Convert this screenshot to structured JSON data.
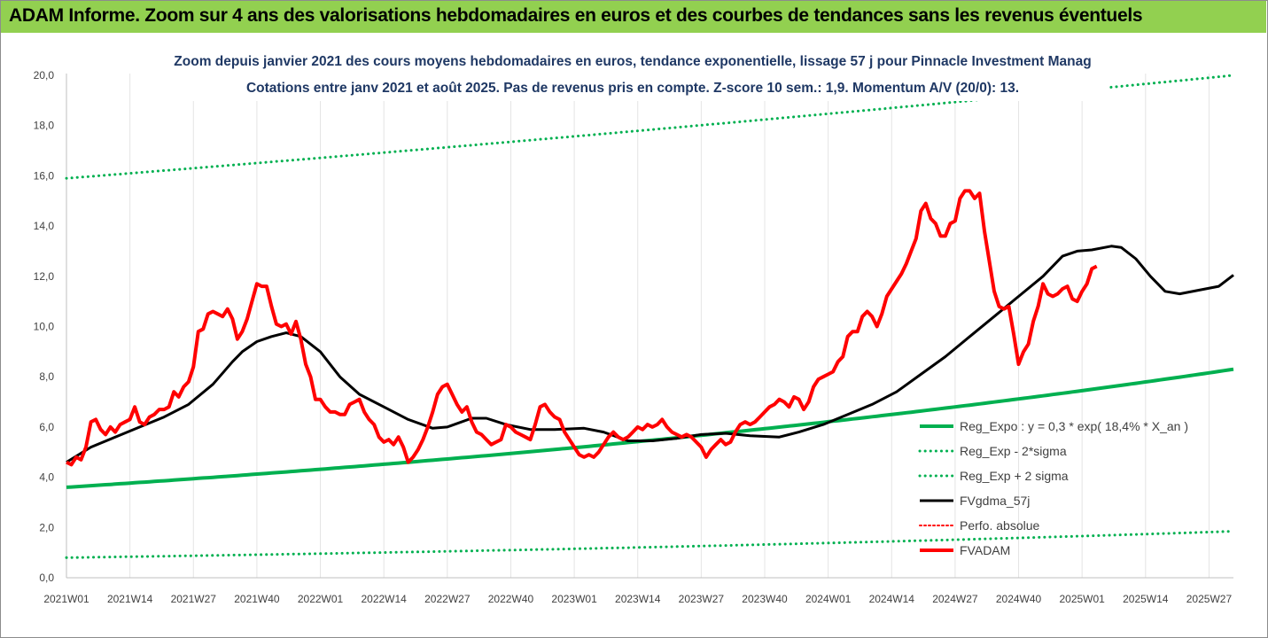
{
  "banner": {
    "title": "ADAM Informe. Zoom sur 4 ans des valorisations hebdomadaires en euros et des courbes de tendances sans les revenus éventuels"
  },
  "colors": {
    "banner_bg": "#92d050",
    "trend": "#00b050",
    "band": "#00b050",
    "smooth": "#000000",
    "price": "#ff0000",
    "perf": "#ff0000",
    "subtitle": "#1f3864"
  },
  "chart_data": {
    "type": "line",
    "title_lines": [
      "Zoom depuis janvier 2021 des cours moyens hebdomadaires en euros, tendance exponentielle, lissage 57 j pour Pinnacle Investment Manag",
      "Cotations entre janv 2021 et août 2025.  Pas de revenus pris en compte. Z-score 10 sem.: 1,9. Momentum A/V (20/0): 13."
    ],
    "y_ticks": [
      "0,0",
      "2,0",
      "4,0",
      "6,0",
      "8,0",
      "10,0",
      "12,0",
      "14,0",
      "16,0",
      "18,0",
      "20,0"
    ],
    "ylim": [
      0,
      20
    ],
    "x_tick_labels": [
      "2021W01",
      "2021W14",
      "2021W27",
      "2021W40",
      "2022W01",
      "2022W14",
      "2022W27",
      "2022W40",
      "2023W01",
      "2023W14",
      "2023W27",
      "2023W40",
      "2024W01",
      "2024W14",
      "2024W27",
      "2024W40",
      "2025W01",
      "2025W14",
      "2025W27"
    ],
    "x_tick_index": [
      0,
      13,
      26,
      39,
      52,
      65,
      78,
      91,
      104,
      117,
      130,
      143,
      156,
      169,
      182,
      195,
      208,
      221,
      234
    ],
    "week_count": 240,
    "grid": "vertical",
    "legend_position": "right",
    "legend": [
      {
        "key": "trend",
        "label": "Reg_Expo : y = 0,3 * exp( 18,4% *  X_an )"
      },
      {
        "key": "lower",
        "label": "Reg_Exp - 2*sigma"
      },
      {
        "key": "upper",
        "label": "Reg_Exp + 2 sigma"
      },
      {
        "key": "smooth",
        "label": "FVgdma_57j"
      },
      {
        "key": "perf",
        "label": "Perfo. absolue"
      },
      {
        "key": "price",
        "label": "FVADAM"
      }
    ],
    "series": [
      {
        "key": "trend",
        "name": "Reg_Expo : y = 0,3 * exp( 18,4% *  X_an )",
        "start": 3.6,
        "end": 8.3
      },
      {
        "key": "lower",
        "name": "Reg_Exp - 2*sigma",
        "start": 0.8,
        "end": 1.85
      },
      {
        "key": "upper",
        "name": "Reg_Exp + 2 sigma",
        "start": 15.9,
        "end": 20.0
      },
      {
        "key": "smooth",
        "name": "FVgdma_57j",
        "points": [
          [
            0,
            4.6
          ],
          [
            5,
            5.2
          ],
          [
            10,
            5.6
          ],
          [
            15,
            6.0
          ],
          [
            20,
            6.4
          ],
          [
            25,
            6.9
          ],
          [
            30,
            7.7
          ],
          [
            34,
            8.6
          ],
          [
            36,
            9.0
          ],
          [
            39,
            9.4
          ],
          [
            42,
            9.6
          ],
          [
            45,
            9.75
          ],
          [
            48,
            9.6
          ],
          [
            52,
            9.0
          ],
          [
            56,
            8.0
          ],
          [
            60,
            7.3
          ],
          [
            65,
            6.8
          ],
          [
            70,
            6.3
          ],
          [
            75,
            5.95
          ],
          [
            78,
            6.0
          ],
          [
            83,
            6.35
          ],
          [
            86,
            6.35
          ],
          [
            90,
            6.1
          ],
          [
            95,
            5.9
          ],
          [
            100,
            5.9
          ],
          [
            106,
            5.95
          ],
          [
            110,
            5.8
          ],
          [
            115,
            5.45
          ],
          [
            120,
            5.45
          ],
          [
            125,
            5.55
          ],
          [
            130,
            5.7
          ],
          [
            135,
            5.75
          ],
          [
            140,
            5.65
          ],
          [
            146,
            5.6
          ],
          [
            150,
            5.8
          ],
          [
            155,
            6.1
          ],
          [
            160,
            6.5
          ],
          [
            165,
            6.9
          ],
          [
            170,
            7.4
          ],
          [
            175,
            8.1
          ],
          [
            180,
            8.8
          ],
          [
            185,
            9.6
          ],
          [
            190,
            10.4
          ],
          [
            195,
            11.2
          ],
          [
            200,
            12.0
          ],
          [
            204,
            12.8
          ],
          [
            207,
            13.0
          ],
          [
            210,
            13.05
          ],
          [
            214,
            13.2
          ],
          [
            216,
            13.15
          ],
          [
            219,
            12.7
          ],
          [
            222,
            12.0
          ],
          [
            225,
            11.4
          ],
          [
            228,
            11.3
          ],
          [
            232,
            11.45
          ],
          [
            236,
            11.6
          ],
          [
            239,
            12.05
          ]
        ]
      },
      {
        "key": "price",
        "name": "FVADAM",
        "points": [
          [
            0,
            4.6
          ],
          [
            1,
            4.5
          ],
          [
            2,
            4.8
          ],
          [
            3,
            4.7
          ],
          [
            4,
            5.2
          ],
          [
            5,
            6.2
          ],
          [
            6,
            6.3
          ],
          [
            7,
            5.9
          ],
          [
            8,
            5.7
          ],
          [
            9,
            6.0
          ],
          [
            10,
            5.8
          ],
          [
            11,
            6.1
          ],
          [
            12,
            6.2
          ],
          [
            13,
            6.3
          ],
          [
            14,
            6.8
          ],
          [
            15,
            6.2
          ],
          [
            16,
            6.1
          ],
          [
            17,
            6.4
          ],
          [
            18,
            6.5
          ],
          [
            19,
            6.7
          ],
          [
            20,
            6.7
          ],
          [
            21,
            6.8
          ],
          [
            22,
            7.4
          ],
          [
            23,
            7.2
          ],
          [
            24,
            7.6
          ],
          [
            25,
            7.8
          ],
          [
            26,
            8.4
          ],
          [
            27,
            9.8
          ],
          [
            28,
            9.9
          ],
          [
            29,
            10.5
          ],
          [
            30,
            10.6
          ],
          [
            31,
            10.5
          ],
          [
            32,
            10.4
          ],
          [
            33,
            10.7
          ],
          [
            34,
            10.3
          ],
          [
            35,
            9.5
          ],
          [
            36,
            9.8
          ],
          [
            37,
            10.3
          ],
          [
            38,
            11.0
          ],
          [
            39,
            11.7
          ],
          [
            40,
            11.6
          ],
          [
            41,
            11.6
          ],
          [
            42,
            10.8
          ],
          [
            43,
            10.1
          ],
          [
            44,
            10.0
          ],
          [
            45,
            10.1
          ],
          [
            46,
            9.7
          ],
          [
            47,
            10.2
          ],
          [
            48,
            9.5
          ],
          [
            49,
            8.5
          ],
          [
            50,
            8.0
          ],
          [
            51,
            7.1
          ],
          [
            52,
            7.1
          ],
          [
            53,
            6.8
          ],
          [
            54,
            6.6
          ],
          [
            55,
            6.6
          ],
          [
            56,
            6.5
          ],
          [
            57,
            6.5
          ],
          [
            58,
            6.9
          ],
          [
            59,
            7.0
          ],
          [
            60,
            7.1
          ],
          [
            61,
            6.6
          ],
          [
            62,
            6.3
          ],
          [
            63,
            6.1
          ],
          [
            64,
            5.6
          ],
          [
            65,
            5.4
          ],
          [
            66,
            5.5
          ],
          [
            67,
            5.3
          ],
          [
            68,
            5.6
          ],
          [
            69,
            5.2
          ],
          [
            70,
            4.6
          ],
          [
            71,
            4.8
          ],
          [
            72,
            5.1
          ],
          [
            73,
            5.5
          ],
          [
            74,
            6.0
          ],
          [
            75,
            6.6
          ],
          [
            76,
            7.3
          ],
          [
            77,
            7.6
          ],
          [
            78,
            7.7
          ],
          [
            79,
            7.3
          ],
          [
            80,
            6.9
          ],
          [
            81,
            6.6
          ],
          [
            82,
            6.8
          ],
          [
            83,
            6.2
          ],
          [
            84,
            5.8
          ],
          [
            85,
            5.7
          ],
          [
            86,
            5.5
          ],
          [
            87,
            5.3
          ],
          [
            88,
            5.4
          ],
          [
            89,
            5.5
          ],
          [
            90,
            6.1
          ],
          [
            91,
            6.0
          ],
          [
            92,
            5.8
          ],
          [
            93,
            5.7
          ],
          [
            94,
            5.6
          ],
          [
            95,
            5.5
          ],
          [
            96,
            6.1
          ],
          [
            97,
            6.8
          ],
          [
            98,
            6.9
          ],
          [
            99,
            6.6
          ],
          [
            100,
            6.4
          ],
          [
            101,
            6.3
          ],
          [
            102,
            5.8
          ],
          [
            103,
            5.5
          ],
          [
            104,
            5.2
          ],
          [
            105,
            4.9
          ],
          [
            106,
            4.8
          ],
          [
            107,
            4.9
          ],
          [
            108,
            4.8
          ],
          [
            109,
            5.0
          ],
          [
            110,
            5.3
          ],
          [
            111,
            5.6
          ],
          [
            112,
            5.8
          ],
          [
            113,
            5.6
          ],
          [
            114,
            5.5
          ],
          [
            115,
            5.6
          ],
          [
            116,
            5.8
          ],
          [
            117,
            6.0
          ],
          [
            118,
            5.9
          ],
          [
            119,
            6.1
          ],
          [
            120,
            6.0
          ],
          [
            121,
            6.1
          ],
          [
            122,
            6.3
          ],
          [
            123,
            6.0
          ],
          [
            124,
            5.8
          ],
          [
            125,
            5.7
          ],
          [
            126,
            5.6
          ],
          [
            127,
            5.7
          ],
          [
            128,
            5.6
          ],
          [
            129,
            5.4
          ],
          [
            130,
            5.2
          ],
          [
            131,
            4.8
          ],
          [
            132,
            5.1
          ],
          [
            133,
            5.3
          ],
          [
            134,
            5.5
          ],
          [
            135,
            5.3
          ],
          [
            136,
            5.4
          ],
          [
            137,
            5.8
          ],
          [
            138,
            6.1
          ],
          [
            139,
            6.2
          ],
          [
            140,
            6.1
          ],
          [
            141,
            6.2
          ],
          [
            142,
            6.4
          ],
          [
            143,
            6.6
          ],
          [
            144,
            6.8
          ],
          [
            145,
            6.9
          ],
          [
            146,
            7.1
          ],
          [
            147,
            7.0
          ],
          [
            148,
            6.8
          ],
          [
            149,
            7.2
          ],
          [
            150,
            7.1
          ],
          [
            151,
            6.7
          ],
          [
            152,
            7.0
          ],
          [
            153,
            7.6
          ],
          [
            154,
            7.9
          ],
          [
            155,
            8.0
          ],
          [
            156,
            8.1
          ],
          [
            157,
            8.2
          ],
          [
            158,
            8.6
          ],
          [
            159,
            8.8
          ],
          [
            160,
            9.6
          ],
          [
            161,
            9.8
          ],
          [
            162,
            9.8
          ],
          [
            163,
            10.4
          ],
          [
            164,
            10.6
          ],
          [
            165,
            10.4
          ],
          [
            166,
            10.0
          ],
          [
            167,
            10.5
          ],
          [
            168,
            11.2
          ],
          [
            169,
            11.5
          ],
          [
            170,
            11.8
          ],
          [
            171,
            12.1
          ],
          [
            172,
            12.5
          ],
          [
            173,
            13.0
          ],
          [
            174,
            13.5
          ],
          [
            175,
            14.6
          ],
          [
            176,
            14.9
          ],
          [
            177,
            14.3
          ],
          [
            178,
            14.1
          ],
          [
            179,
            13.6
          ],
          [
            180,
            13.6
          ],
          [
            181,
            14.1
          ],
          [
            182,
            14.2
          ],
          [
            183,
            15.1
          ],
          [
            184,
            15.4
          ],
          [
            185,
            15.4
          ],
          [
            186,
            15.1
          ],
          [
            187,
            15.3
          ],
          [
            188,
            13.8
          ],
          [
            189,
            12.6
          ],
          [
            190,
            11.4
          ],
          [
            191,
            10.8
          ],
          [
            192,
            10.7
          ],
          [
            193,
            10.8
          ],
          [
            194,
            9.7
          ],
          [
            195,
            8.5
          ],
          [
            196,
            9.0
          ],
          [
            197,
            9.3
          ],
          [
            198,
            10.2
          ],
          [
            199,
            10.8
          ],
          [
            200,
            11.7
          ],
          [
            201,
            11.3
          ],
          [
            202,
            11.2
          ],
          [
            203,
            11.3
          ],
          [
            204,
            11.5
          ],
          [
            205,
            11.6
          ],
          [
            206,
            11.1
          ],
          [
            207,
            11.0
          ],
          [
            208,
            11.4
          ],
          [
            209,
            11.7
          ],
          [
            210,
            12.3
          ],
          [
            211,
            12.4
          ]
        ]
      }
    ]
  }
}
